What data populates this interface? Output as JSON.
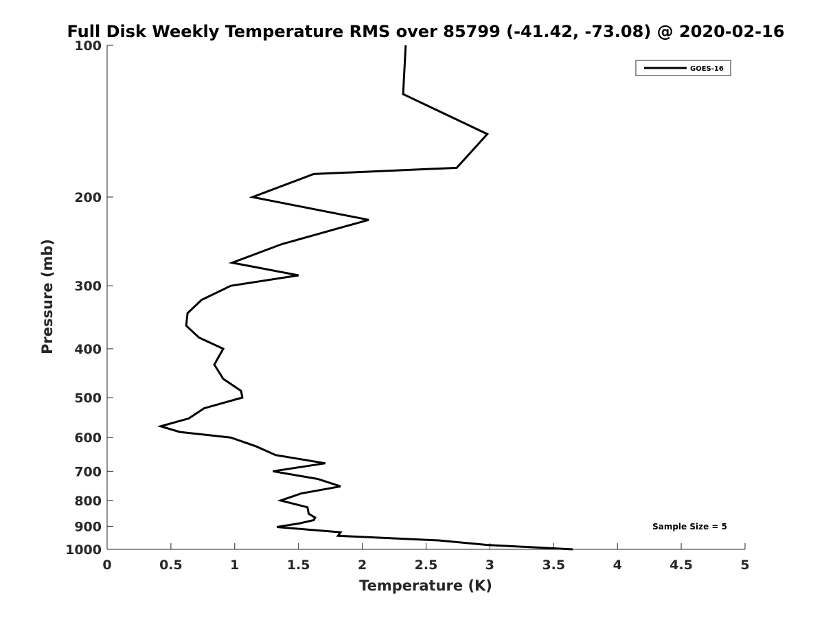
{
  "chart_data": {
    "type": "line",
    "title": "Full Disk Weekly Temperature RMS over 85799 (-41.42, -73.08) @ 2020-02-16",
    "xlabel": "Temperature (K)",
    "ylabel": "Pressure (mb)",
    "xlim": [
      0,
      5
    ],
    "ylim": [
      100,
      1000
    ],
    "y_scale": "log",
    "y_reversed": true,
    "x_ticks": [
      0,
      0.5,
      1,
      1.5,
      2,
      2.5,
      3,
      3.5,
      4,
      4.5,
      5
    ],
    "x_tick_labels": [
      "0",
      "0.5",
      "1",
      "1.5",
      "2",
      "2.5",
      "3",
      "3.5",
      "4",
      "4.5",
      "5"
    ],
    "y_ticks": [
      100,
      200,
      300,
      400,
      500,
      600,
      700,
      800,
      900,
      1000
    ],
    "y_tick_labels": [
      "100",
      "200",
      "300",
      "400",
      "500",
      "600",
      "700",
      "800",
      "900",
      "1000"
    ],
    "grid": false,
    "legend_position": "top-right",
    "series": [
      {
        "name": "GOES-16",
        "color": "#000000",
        "points": [
          [
            2.34,
            100
          ],
          [
            2.32,
            125
          ],
          [
            2.98,
            150
          ],
          [
            2.74,
            175
          ],
          [
            1.62,
            180
          ],
          [
            1.14,
            200
          ],
          [
            2.05,
            222
          ],
          [
            1.37,
            248
          ],
          [
            0.98,
            270
          ],
          [
            1.5,
            286
          ],
          [
            0.97,
            300
          ],
          [
            0.74,
            320
          ],
          [
            0.63,
            340
          ],
          [
            0.62,
            360
          ],
          [
            0.72,
            380
          ],
          [
            0.91,
            400
          ],
          [
            0.84,
            430
          ],
          [
            0.91,
            459
          ],
          [
            1.05,
            485
          ],
          [
            1.06,
            500
          ],
          [
            0.76,
            525
          ],
          [
            0.64,
            550
          ],
          [
            0.42,
            570
          ],
          [
            0.57,
            585
          ],
          [
            0.97,
            600
          ],
          [
            1.17,
            625
          ],
          [
            1.32,
            650
          ],
          [
            1.71,
            675
          ],
          [
            1.3,
            700
          ],
          [
            1.65,
            725
          ],
          [
            1.83,
            750
          ],
          [
            1.52,
            775
          ],
          [
            1.36,
            800
          ],
          [
            1.57,
            825
          ],
          [
            1.58,
            850
          ],
          [
            1.63,
            865
          ],
          [
            1.62,
            875
          ],
          [
            1.51,
            888
          ],
          [
            1.33,
            903
          ],
          [
            1.83,
            925
          ],
          [
            1.81,
            940
          ],
          [
            2.6,
            960
          ],
          [
            2.98,
            980
          ],
          [
            3.65,
            1000
          ]
        ]
      }
    ],
    "annotations": [
      "Sample Size = 5"
    ]
  }
}
